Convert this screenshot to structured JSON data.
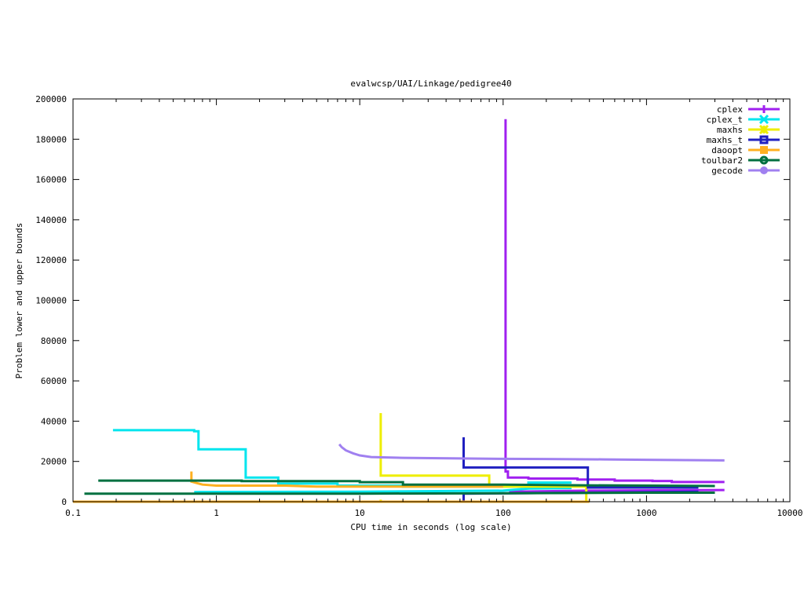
{
  "chart_data": {
    "type": "line",
    "title": "evalwcsp/UAI/Linkage/pedigree40",
    "xlabel": "CPU time in seconds (log scale)",
    "ylabel": "Problem lower and upper bounds",
    "x_scale": "log",
    "xlim": [
      0.1,
      10000
    ],
    "ylim": [
      0,
      200000
    ],
    "x_ticks": [
      0.1,
      1,
      10,
      100,
      1000,
      10000
    ],
    "x_tick_labels": [
      "0.1",
      "1",
      "10",
      "100",
      "1000",
      "10000"
    ],
    "y_ticks": [
      0,
      20000,
      40000,
      60000,
      80000,
      100000,
      120000,
      140000,
      160000,
      180000,
      200000
    ],
    "y_tick_labels": [
      "0",
      "20000",
      "40000",
      "60000",
      "80000",
      "100000",
      "120000",
      "140000",
      "160000",
      "180000",
      "200000"
    ],
    "grid": false,
    "legend_position": "top-right",
    "series": [
      {
        "name": "cplex",
        "color": "#a020f0",
        "marker": "plus",
        "lines": [
          [
            [
              104,
              190000
            ],
            [
              104,
              15000
            ],
            [
              108,
              15000
            ],
            [
              108,
              12000
            ],
            [
              150,
              12000
            ],
            [
              150,
              11500
            ],
            [
              330,
              11500
            ],
            [
              330,
              11000
            ],
            [
              600,
              11000
            ],
            [
              600,
              10500
            ],
            [
              1100,
              10500
            ],
            [
              1100,
              10300
            ],
            [
              1500,
              10300
            ],
            [
              1500,
              9800
            ],
            [
              3500,
              9800
            ]
          ],
          [
            [
              110,
              5000
            ],
            [
              400,
              5500
            ],
            [
              800,
              5600
            ],
            [
              3500,
              5800
            ]
          ]
        ]
      },
      {
        "name": "cplex_t",
        "color": "#00e5ee",
        "marker": "cross",
        "lines": [
          [
            [
              0.19,
              35500
            ],
            [
              0.7,
              35500
            ],
            [
              0.7,
              35000
            ],
            [
              0.75,
              35000
            ],
            [
              0.75,
              26000
            ],
            [
              1.6,
              26000
            ],
            [
              1.6,
              12000
            ],
            [
              2.7,
              12000
            ],
            [
              2.7,
              9000
            ],
            [
              7,
              9000
            ],
            [
              7,
              8000
            ],
            [
              20,
              8000
            ],
            [
              20,
              7500
            ],
            [
              150,
              7500
            ],
            [
              150,
              9500
            ],
            [
              300,
              9500
            ]
          ],
          [
            [
              0.7,
              4800
            ],
            [
              10,
              5000
            ],
            [
              100,
              5500
            ],
            [
              150,
              6500
            ],
            [
              300,
              6800
            ]
          ]
        ]
      },
      {
        "name": "maxhs",
        "color": "#eeee00",
        "marker": "star",
        "lines": [
          [
            [
              14,
              44000
            ],
            [
              14,
              13000
            ],
            [
              80,
              13000
            ],
            [
              80,
              7500
            ],
            [
              380,
              7500
            ],
            [
              380,
              0
            ]
          ],
          [
            [
              14,
              0
            ],
            [
              14,
              1000
            ]
          ]
        ]
      },
      {
        "name": "maxhs_t",
        "color": "#2020c0",
        "marker": "square",
        "lines": [
          [
            [
              53,
              32000
            ],
            [
              53,
              17000
            ],
            [
              390,
              17000
            ],
            [
              390,
              7000
            ],
            [
              2300,
              7000
            ]
          ],
          [
            [
              53,
              0
            ],
            [
              53,
              4000
            ],
            [
              400,
              4500
            ],
            [
              2300,
              5000
            ]
          ]
        ]
      },
      {
        "name": "daoopt",
        "color": "#ffb020",
        "marker": "filled-square",
        "lines": [
          [
            [
              0.67,
              15000
            ],
            [
              0.67,
              10000
            ],
            [
              0.8,
              8500
            ],
            [
              1,
              8000
            ],
            [
              3,
              8000
            ],
            [
              5,
              7500
            ],
            [
              20,
              7500
            ],
            [
              100,
              7500
            ]
          ],
          [
            [
              0.1,
              0
            ],
            [
              400,
              0
            ]
          ]
        ]
      },
      {
        "name": "toulbar2",
        "color": "#007040",
        "marker": "circle",
        "lines": [
          [
            [
              0.15,
              10500
            ],
            [
              1.5,
              10500
            ],
            [
              1.5,
              10200
            ],
            [
              10,
              10200
            ],
            [
              10,
              9700
            ],
            [
              20,
              9700
            ],
            [
              20,
              8500
            ],
            [
              100,
              8500
            ],
            [
              300,
              8200
            ],
            [
              3000,
              7800
            ]
          ],
          [
            [
              0.12,
              4000
            ],
            [
              10,
              4000
            ],
            [
              100,
              4200
            ],
            [
              1000,
              4500
            ],
            [
              3000,
              4500
            ]
          ]
        ]
      },
      {
        "name": "gecode",
        "color": "#a080f0",
        "marker": "filled-circle",
        "lines": [
          [
            [
              7.2,
              28500
            ],
            [
              7.5,
              27000
            ],
            [
              8,
              25500
            ],
            [
              9,
              24000
            ],
            [
              10,
              23000
            ],
            [
              12,
              22200
            ],
            [
              20,
              21800
            ],
            [
              50,
              21500
            ],
            [
              100,
              21300
            ],
            [
              200,
              21200
            ],
            [
              500,
              21000
            ],
            [
              1000,
              20800
            ],
            [
              3500,
              20500
            ]
          ]
        ]
      }
    ]
  }
}
